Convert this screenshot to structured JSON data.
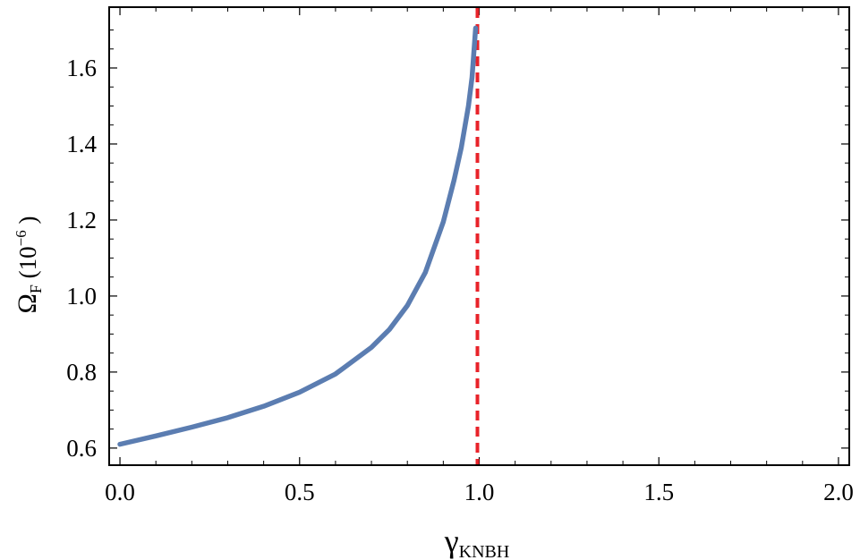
{
  "chart_data": {
    "type": "line",
    "xlabel": "γ",
    "xlabel_sub": "KNBH",
    "ylabel": "Ω",
    "ylabel_sub": "F",
    "ylabel_unit_open": " (10",
    "ylabel_unit_exp": "−6",
    "ylabel_unit_close": " )",
    "xlim": [
      -0.03,
      2.03
    ],
    "ylim": [
      0.555,
      1.76
    ],
    "xticks": [
      0.0,
      0.5,
      1.0,
      1.5,
      2.0
    ],
    "xtick_labels": [
      "0.0",
      "0.5",
      "1.0",
      "1.5",
      "2.0"
    ],
    "yticks": [
      0.6,
      0.8,
      1.0,
      1.2,
      1.4,
      1.6
    ],
    "ytick_labels": [
      "0.6",
      "0.8",
      "1.0",
      "1.2",
      "1.4",
      "1.6"
    ],
    "grid": false,
    "series": [
      {
        "color": "#5B7DB1",
        "style": "solid",
        "x": [
          0.0,
          0.1,
          0.2,
          0.3,
          0.4,
          0.5,
          0.6,
          0.7,
          0.75,
          0.8,
          0.85,
          0.9,
          0.93,
          0.95,
          0.97,
          0.98,
          0.99
        ],
        "y": [
          0.61,
          0.632,
          0.655,
          0.68,
          0.71,
          0.747,
          0.795,
          0.865,
          0.912,
          0.975,
          1.062,
          1.195,
          1.305,
          1.39,
          1.5,
          1.575,
          1.705
        ]
      }
    ],
    "vlines": [
      {
        "x": 0.995,
        "color": "#E8232A",
        "style": "dashed"
      }
    ]
  }
}
